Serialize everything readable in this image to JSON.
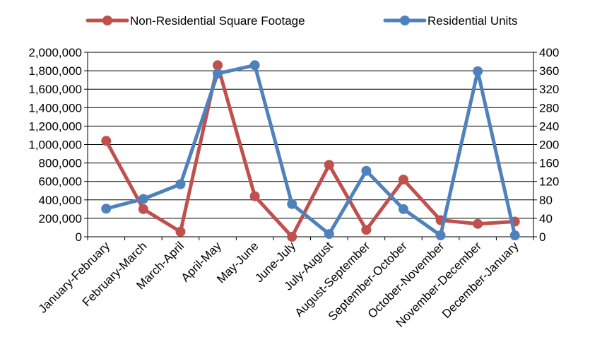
{
  "chart_data": {
    "type": "line",
    "title": "",
    "xlabel": "",
    "ylabel": "",
    "y2label": "",
    "grid": true,
    "legend_position": "top",
    "categories": [
      "January-February",
      "February-March",
      "March-April",
      "April-May",
      "May-June",
      "June-July",
      "July-August",
      "August-September",
      "September-October",
      "October-November",
      "November-December",
      "December-January"
    ],
    "series": [
      {
        "name": "Non-Residential Square Footage",
        "axis": "left",
        "color": "#C0504D",
        "values": [
          1040000,
          300000,
          55000,
          1860000,
          440000,
          0,
          780000,
          75000,
          620000,
          180000,
          140000,
          165000
        ]
      },
      {
        "name": "Residential Units",
        "axis": "right",
        "color": "#4F81BD",
        "values": [
          61,
          82,
          114,
          354,
          372,
          71,
          6,
          143,
          60,
          3,
          359,
          3
        ]
      }
    ],
    "y_left": {
      "ylim": [
        0,
        2000000
      ],
      "ticks": [
        0,
        200000,
        400000,
        600000,
        800000,
        1000000,
        1200000,
        1400000,
        1600000,
        1800000,
        2000000
      ],
      "tick_labels": [
        "0",
        "200,000",
        "400,000",
        "600,000",
        "800,000",
        "1,000,000",
        "1,200,000",
        "1,400,000",
        "1,600,000",
        "1,800,000",
        "2,000,000"
      ]
    },
    "y_right": {
      "ylim": [
        0,
        400
      ],
      "ticks": [
        0,
        40,
        80,
        120,
        160,
        200,
        240,
        280,
        320,
        360,
        400
      ],
      "tick_labels": [
        "0",
        "40",
        "80",
        "120",
        "160",
        "200",
        "240",
        "280",
        "320",
        "360",
        "400"
      ]
    }
  }
}
